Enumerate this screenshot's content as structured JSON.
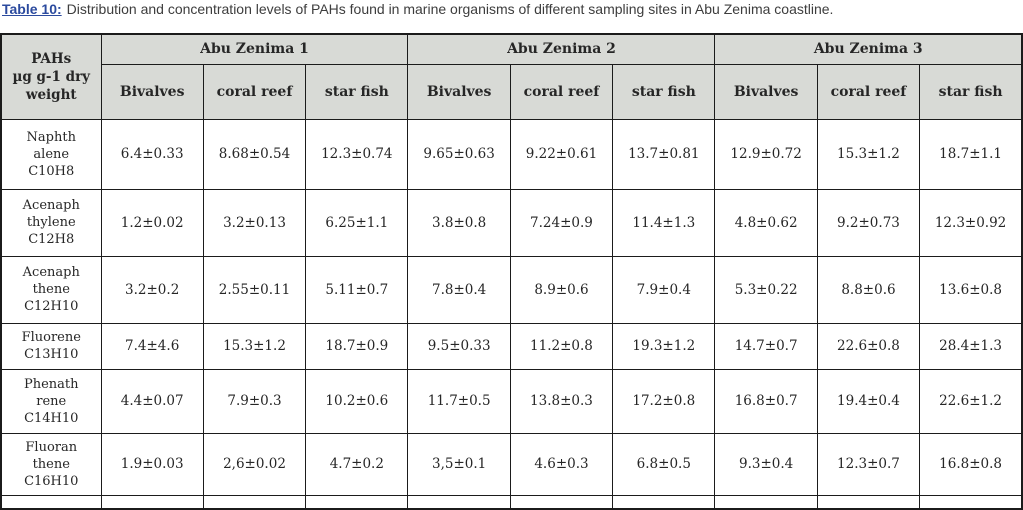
{
  "caption": {
    "label": "Table 10:",
    "text": "Distribution and concentration levels of PAHs found in marine organisms of different sampling sites in Abu Zenima coastline."
  },
  "colors": {
    "caption_label_blue": "#2b4a9e",
    "header_bg": "#d8dad6",
    "border": "#1b1b1b"
  },
  "table": {
    "corner_header_lines": [
      "PAHs",
      "µg g-1 dry",
      "weight"
    ],
    "site_groups": [
      {
        "label": "Abu Zenima 1"
      },
      {
        "label": "Abu Zenima 2"
      },
      {
        "label": "Abu Zenima 3"
      }
    ],
    "organism_columns": [
      "Bivalves",
      "coral reef",
      "star fish",
      "Bivalves",
      "coral reef",
      "star fish",
      "Bivalves",
      "coral reef",
      "star fish"
    ],
    "rows": [
      {
        "compound_lines": [
          "Naphth",
          "alene",
          "C10H8"
        ],
        "values": [
          "6.4±0.33",
          "8.68±0.54",
          "12.3±0.74",
          "9.65±0.63",
          "9.22±0.61",
          "13.7±0.81",
          "12.9±0.72",
          "15.3±1.2",
          "18.7±1.1"
        ]
      },
      {
        "compound_lines": [
          "Acenaph",
          "thylene",
          "C12H8"
        ],
        "values": [
          "1.2±0.02",
          "3.2±0.13",
          "6.25±1.1",
          "3.8±0.8",
          "7.24±0.9",
          "11.4±1.3",
          "4.8±0.62",
          "9.2±0.73",
          "12.3±0.92"
        ]
      },
      {
        "compound_lines": [
          "Acenaph",
          "thene",
          "C12H10"
        ],
        "values": [
          "3.2±0.2",
          "2.55±0.11",
          "5.11±0.7",
          "7.8±0.4",
          "8.9±0.6",
          "7.9±0.4",
          "5.3±0.22",
          "8.8±0.6",
          "13.6±0.8"
        ]
      },
      {
        "compound_lines": [
          "Fluorene",
          "C13H10"
        ],
        "values": [
          "7.4±4.6",
          "15.3±1.2",
          "18.7±0.9",
          "9.5±0.33",
          "11.2±0.8",
          "19.3±1.2",
          "14.7±0.7",
          "22.6±0.8",
          "28.4±1.3"
        ]
      },
      {
        "compound_lines": [
          "Phenath",
          "rene",
          "C14H10"
        ],
        "values": [
          "4.4±0.07",
          "7.9±0.3",
          "10.2±0.6",
          "11.7±0.5",
          "13.8±0.3",
          "17.2±0.8",
          "16.8±0.7",
          "19.4±0.4",
          "22.6±1.2"
        ]
      },
      {
        "compound_lines": [
          "Fluoran",
          "thene",
          "C16H10"
        ],
        "values": [
          "1.9±0.03",
          "2,6±0.02",
          "4.7±0.2",
          "3,5±0.1",
          "4.6±0.3",
          "6.8±0.5",
          "9.3±0.4",
          "12.3±0.7",
          "16.8±0.8"
        ]
      }
    ]
  }
}
